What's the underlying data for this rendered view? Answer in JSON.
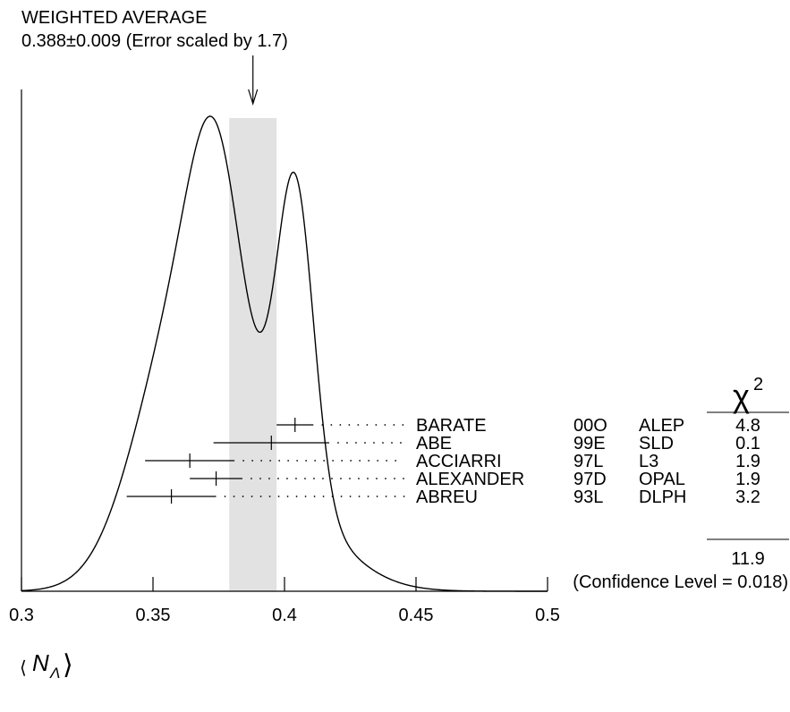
{
  "chart_data": {
    "type": "ideogram",
    "title": "WEIGHTED AVERAGE",
    "subtitle": "0.388±0.009 (Error scaled by 1.7)",
    "average": {
      "value": 0.388,
      "error": 0.009
    },
    "xlabel_main": "⟨N",
    "xlabel_sub": "Λ",
    "xlabel_close": "⟩",
    "xlim": [
      0.3,
      0.5
    ],
    "xticks": [
      {
        "value": 0.3,
        "label": "0.3"
      },
      {
        "value": 0.35,
        "label": "0.35"
      },
      {
        "value": 0.4,
        "label": "0.4"
      },
      {
        "value": 0.45,
        "label": "0.45"
      },
      {
        "value": 0.5,
        "label": "0.5"
      }
    ],
    "chi2_header": "χ",
    "chi2_sup": "2",
    "measurements": [
      {
        "author": "BARATE",
        "year": "00O",
        "experiment": "ALEP",
        "value": 0.404,
        "error": 0.007,
        "chi2": "4.8"
      },
      {
        "author": "ABE",
        "year": "99E",
        "experiment": "SLD",
        "value": 0.395,
        "error": 0.022,
        "chi2": "0.1"
      },
      {
        "author": "ACCIARRI",
        "year": "97L",
        "experiment": "L3",
        "value": 0.364,
        "error": 0.017,
        "chi2": "1.9"
      },
      {
        "author": "ALEXANDER",
        "year": "97D",
        "experiment": "OPAL",
        "value": 0.374,
        "error": 0.01,
        "chi2": "1.9"
      },
      {
        "author": "ABREU",
        "year": "93L",
        "experiment": "DLPH",
        "value": 0.357,
        "error": 0.017,
        "chi2": "3.2"
      }
    ],
    "chi2_total": "11.9",
    "confidence_level": "(Confidence Level = 0.018)"
  }
}
